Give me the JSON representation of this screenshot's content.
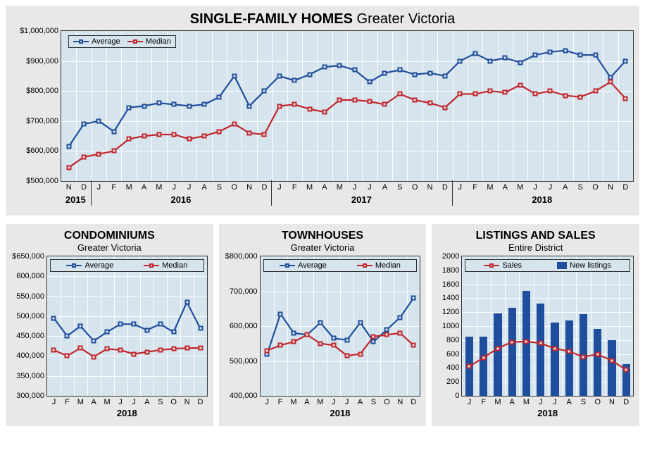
{
  "colors": {
    "panel_bg": "#e8e8e8",
    "plot_bg": "#d6e4ee",
    "grid": "#ffffff",
    "border": "#333333",
    "avg_line": "#1f4e9c",
    "med_line": "#c1272d",
    "bar_fill": "#1f4e9c",
    "marker_fill": "#e8e8e8"
  },
  "legend_labels": {
    "average": "Average",
    "median": "Median",
    "sales": "Sales",
    "new_listings": "New listings"
  },
  "sfh": {
    "title_main": "SINGLE-FAMILY HOMES",
    "title_sub": "Greater Victoria",
    "ylim": [
      500000,
      1000000
    ],
    "ytick_step": 100000,
    "yticks": [
      "$500,000",
      "$600,000",
      "$700,000",
      "$800,000",
      "$900,000",
      "$1,000,000"
    ],
    "months": [
      "N",
      "D",
      "J",
      "F",
      "M",
      "A",
      "M",
      "J",
      "J",
      "A",
      "S",
      "O",
      "N",
      "D",
      "J",
      "F",
      "M",
      "A",
      "M",
      "J",
      "J",
      "A",
      "S",
      "O",
      "N",
      "D",
      "J",
      "F",
      "M",
      "A",
      "M",
      "J",
      "J",
      "A",
      "S",
      "O",
      "N",
      "D"
    ],
    "year_labels": [
      {
        "label": "2015",
        "start": 0,
        "end": 2
      },
      {
        "label": "2016",
        "start": 2,
        "end": 14
      },
      {
        "label": "2017",
        "start": 14,
        "end": 26
      },
      {
        "label": "2018",
        "start": 26,
        "end": 38
      }
    ],
    "average": [
      615000,
      690000,
      700000,
      665000,
      745000,
      750000,
      760000,
      755000,
      750000,
      755000,
      780000,
      850000,
      750000,
      800000,
      850000,
      835000,
      855000,
      880000,
      885000,
      870000,
      830000,
      860000,
      870000,
      855000,
      860000,
      850000,
      900000,
      925000,
      900000,
      910000,
      895000,
      920000,
      930000,
      935000,
      920000,
      920000,
      845000,
      900000
    ],
    "median": [
      545000,
      580000,
      590000,
      600000,
      640000,
      650000,
      655000,
      655000,
      640000,
      650000,
      665000,
      690000,
      660000,
      655000,
      750000,
      755000,
      740000,
      730000,
      770000,
      770000,
      765000,
      755000,
      790000,
      770000,
      760000,
      745000,
      790000,
      790000,
      800000,
      795000,
      820000,
      790000,
      800000,
      785000,
      780000,
      800000,
      830000,
      775000
    ]
  },
  "condo": {
    "title_main": "CONDOMINIUMS",
    "title_sub": "Greater Victoria",
    "year": "2018",
    "ylim": [
      300000,
      650000
    ],
    "ytick_step": 50000,
    "yticks": [
      "300,000",
      "350,000",
      "400,000",
      "450,000",
      "500,000",
      "550,000",
      "600,000",
      "$650,000"
    ],
    "months": [
      "J",
      "F",
      "M",
      "A",
      "M",
      "J",
      "J",
      "A",
      "S",
      "O",
      "N",
      "D"
    ],
    "average": [
      495000,
      450000,
      475000,
      438000,
      460000,
      480000,
      480000,
      465000,
      480000,
      460000,
      535000,
      470000
    ],
    "median": [
      415000,
      400000,
      420000,
      398000,
      418000,
      415000,
      405000,
      410000,
      415000,
      418000,
      420000,
      420000
    ]
  },
  "town": {
    "title_main": "TOWNHOUSES",
    "title_sub": "Greater Victoria",
    "year": "2018",
    "ylim": [
      400000,
      800000
    ],
    "ytick_step": 100000,
    "yticks": [
      "400,000",
      "500,000",
      "600,000",
      "700,000",
      "$800,000"
    ],
    "months": [
      "J",
      "F",
      "M",
      "A",
      "M",
      "J",
      "J",
      "A",
      "S",
      "O",
      "N",
      "D"
    ],
    "average": [
      520000,
      635000,
      580000,
      575000,
      610000,
      565000,
      560000,
      610000,
      555000,
      590000,
      625000,
      680000
    ],
    "median": [
      530000,
      545000,
      555000,
      575000,
      550000,
      545000,
      515000,
      520000,
      570000,
      575000,
      580000,
      545000
    ]
  },
  "listings": {
    "title_main": "LISTINGS AND SALES",
    "title_sub": "Entire District",
    "year": "2018",
    "ylim": [
      0,
      2000
    ],
    "ytick_step": 200,
    "yticks": [
      "0",
      "200",
      "400",
      "600",
      "800",
      "1000",
      "1200",
      "1400",
      "1600",
      "1800",
      "2000"
    ],
    "months": [
      "J",
      "F",
      "M",
      "A",
      "M",
      "J",
      "J",
      "A",
      "S",
      "O",
      "N",
      "D"
    ],
    "sales": [
      420,
      545,
      680,
      770,
      780,
      755,
      680,
      640,
      560,
      595,
      510,
      375
    ],
    "new_listings": [
      850,
      850,
      1180,
      1260,
      1510,
      1320,
      1055,
      1080,
      1175,
      960,
      800,
      455
    ]
  }
}
